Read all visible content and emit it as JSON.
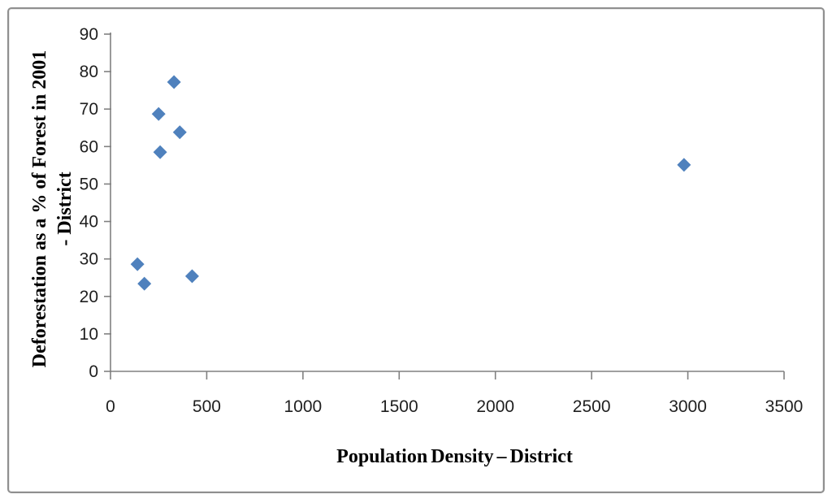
{
  "chart_data": {
    "type": "scatter",
    "title": "",
    "xlabel": "Population Density – District",
    "ylabel_line1": "Deforestation as a % of Forest in 2001",
    "ylabel_line2": "- District",
    "xlim": [
      0,
      3500
    ],
    "ylim": [
      0,
      90
    ],
    "x_ticks": [
      0,
      500,
      1000,
      1500,
      2000,
      2500,
      3000,
      3500
    ],
    "y_ticks": [
      0,
      10,
      20,
      30,
      40,
      50,
      60,
      70,
      80,
      90
    ],
    "grid": "off",
    "legend": "none",
    "marker": "diamond",
    "marker_color": "#4F81BD",
    "points": [
      {
        "x": 140,
        "y": 28.6
      },
      {
        "x": 176,
        "y": 23.4
      },
      {
        "x": 250,
        "y": 68.7
      },
      {
        "x": 258,
        "y": 58.5
      },
      {
        "x": 330,
        "y": 77.2
      },
      {
        "x": 360,
        "y": 63.8
      },
      {
        "x": 424,
        "y": 25.4
      },
      {
        "x": 2980,
        "y": 55.1
      }
    ]
  },
  "frame": {
    "border_color": "#8f8f8f",
    "background": "#ffffff"
  },
  "axis": {
    "line_color": "#808080",
    "tick_label_color": "#1f1f1f",
    "title_color": "#000000"
  }
}
